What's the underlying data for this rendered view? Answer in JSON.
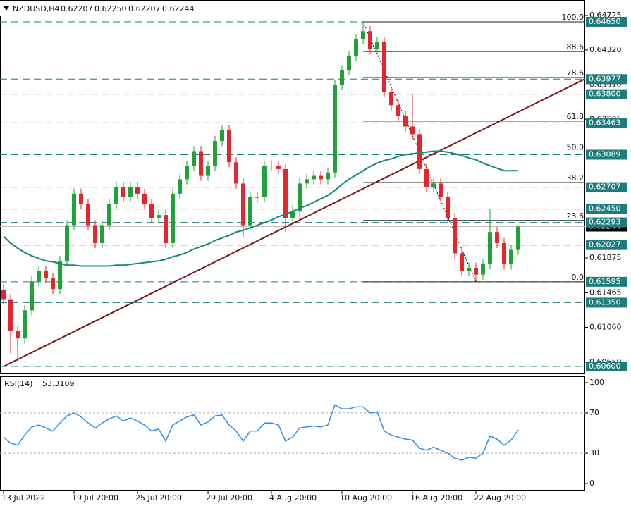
{
  "chart_data": [
    {
      "type": "candlestick",
      "symbol": "NZDUSD,H4",
      "quote": [
        0.62207,
        {
          "value": 0.6225,
          "label": "0.62250"
        },
        0.62207,
        0.62244
      ],
      "categories": [
        "13 Jul 2022",
        null,
        null,
        null,
        null,
        null,
        null,
        null,
        null,
        null,
        "19 Jul 20:00",
        null,
        null,
        null,
        null,
        null,
        null,
        null,
        null,
        "25 Jul 20:00",
        null,
        null,
        null,
        null,
        null,
        null,
        null,
        null,
        null,
        "29 Jul 20:00",
        null,
        null,
        null,
        null,
        null,
        null,
        null,
        null,
        "4 Aug 20:00",
        null,
        null,
        null,
        null,
        null,
        null,
        null,
        null,
        null,
        "10 Aug 20:00",
        null,
        null,
        null,
        null,
        null,
        null,
        null,
        null,
        null,
        "16 Aug 20:00",
        null,
        null,
        null,
        null,
        null,
        null,
        null,
        null,
        "22 Aug 20:00",
        null,
        null,
        null,
        null,
        null,
        null
      ],
      "open": [
        0.615,
        0.6139,
        0.6102,
        0.6093,
        0.6126,
        0.616,
        0.6172,
        0.6164,
        0.6151,
        0.6184,
        0.6226,
        0.6263,
        0.6251,
        0.6226,
        0.6205,
        0.6226,
        0.6251,
        0.6271,
        0.6259,
        0.6271,
        0.6263,
        0.6251,
        0.6234,
        0.6238,
        0.6205,
        0.6263,
        0.628,
        0.6296,
        0.6313,
        0.6284,
        0.6296,
        0.6325,
        0.6338,
        0.63,
        0.6275,
        0.6226,
        0.6259,
        0.6259,
        0.6296,
        0.6296,
        0.6292,
        0.6234,
        0.6242,
        0.6275,
        0.628,
        0.6284,
        0.628,
        0.6288,
        0.6391,
        0.6408,
        0.6425,
        0.6445,
        0.6454,
        0.6433,
        0.6441,
        0.6383,
        0.6367,
        0.6354,
        0.6342,
        0.6333,
        0.6292,
        0.6271,
        0.6275,
        0.6259,
        0.6234,
        0.6193,
        0.6172,
        0.6176,
        0.6168,
        0.618,
        0.6218,
        0.6205,
        0.618,
        0.6197
      ],
      "high": [
        0.6156,
        0.6145,
        0.6108,
        0.6132,
        0.6166,
        0.6178,
        0.6178,
        0.617,
        0.619,
        0.6232,
        0.6269,
        0.6269,
        0.6257,
        0.6232,
        0.6232,
        0.6257,
        0.6277,
        0.6277,
        0.6277,
        0.6277,
        0.6269,
        0.6257,
        0.6244,
        0.6244,
        0.6269,
        0.6286,
        0.6302,
        0.6319,
        0.6319,
        0.6302,
        0.6331,
        0.6344,
        0.6344,
        0.6306,
        0.6281,
        0.6265,
        0.6265,
        0.6302,
        0.6302,
        0.6302,
        0.6298,
        0.6248,
        0.6281,
        0.6286,
        0.629,
        0.629,
        0.6294,
        0.6397,
        0.6414,
        0.6431,
        0.6451,
        0.6465,
        0.646,
        0.6447,
        0.6447,
        0.6389,
        0.6373,
        0.636,
        0.638,
        0.6339,
        0.6298,
        0.6281,
        0.6281,
        0.6265,
        0.624,
        0.6199,
        0.6182,
        0.6182,
        0.6186,
        0.6245,
        0.6224,
        0.6211,
        0.6203,
        0.6226
      ],
      "low": [
        0.6133,
        0.6075,
        0.6065,
        0.6087,
        0.612,
        0.6154,
        0.6158,
        0.6145,
        0.6145,
        0.6178,
        0.622,
        0.6245,
        0.622,
        0.6199,
        0.6199,
        0.622,
        0.6245,
        0.6253,
        0.6253,
        0.6257,
        0.6245,
        0.6228,
        0.6228,
        0.6199,
        0.6199,
        0.6257,
        0.6274,
        0.629,
        0.6278,
        0.6278,
        0.629,
        0.6319,
        0.6294,
        0.6269,
        0.6212,
        0.622,
        0.6253,
        0.6253,
        0.629,
        0.6286,
        0.6218,
        0.6228,
        0.6236,
        0.6269,
        0.6274,
        0.6274,
        0.6274,
        0.6282,
        0.6385,
        0.6402,
        0.6419,
        0.6439,
        0.6427,
        0.6427,
        0.6377,
        0.6361,
        0.6348,
        0.6336,
        0.6327,
        0.6286,
        0.6265,
        0.6265,
        0.6253,
        0.6228,
        0.6187,
        0.6166,
        0.6166,
        0.616,
        0.6162,
        0.6174,
        0.6199,
        0.6174,
        0.6174,
        0.6191
      ],
      "close": [
        0.6139,
        0.6102,
        0.6093,
        0.6126,
        0.616,
        0.6172,
        0.6164,
        0.6151,
        0.6184,
        0.6226,
        0.6263,
        0.6251,
        0.6226,
        0.6205,
        0.6226,
        0.6251,
        0.6271,
        0.6259,
        0.6271,
        0.6263,
        0.6251,
        0.6234,
        0.6238,
        0.6205,
        0.6263,
        0.628,
        0.6296,
        0.6313,
        0.6284,
        0.6296,
        0.6325,
        0.6338,
        0.63,
        0.6275,
        0.6226,
        0.6259,
        0.6259,
        0.6296,
        0.6296,
        0.6292,
        0.6234,
        0.6242,
        0.6275,
        0.628,
        0.6284,
        0.628,
        0.6288,
        0.6391,
        0.6408,
        0.6425,
        0.6445,
        0.6454,
        0.6433,
        0.6441,
        0.6383,
        0.6367,
        0.6354,
        0.6342,
        0.6333,
        0.6292,
        0.6271,
        0.6275,
        0.6259,
        0.6234,
        0.6193,
        0.6172,
        0.6176,
        0.6168,
        0.618,
        0.6218,
        0.6205,
        0.618,
        0.6197,
        0.62244
      ],
      "up_color": "#22a03a",
      "down_color": "#e3262e",
      "ma": {
        "color": "#14887c",
        "values": [
          0.6213,
          0.6205,
          0.6199,
          0.6194,
          0.619,
          0.6187,
          0.6184,
          0.6183,
          0.6181,
          0.6179,
          0.6179,
          0.6178,
          0.6178,
          0.6178,
          0.6178,
          0.6178,
          0.6179,
          0.6179,
          0.618,
          0.6181,
          0.6182,
          0.6183,
          0.6184,
          0.6186,
          0.6189,
          0.6191,
          0.6194,
          0.6198,
          0.6201,
          0.6204,
          0.6208,
          0.6211,
          0.6214,
          0.6218,
          0.622,
          0.6223,
          0.6226,
          0.6229,
          0.6232,
          0.6236,
          0.6239,
          0.6242,
          0.6246,
          0.6249,
          0.6253,
          0.6257,
          0.6261,
          0.6267,
          0.6274,
          0.628,
          0.6285,
          0.629,
          0.6295,
          0.6299,
          0.6302,
          0.6304,
          0.6307,
          0.6309,
          0.631,
          0.6311,
          0.6312,
          0.6313,
          0.6313,
          0.6312,
          0.631,
          0.6308,
          0.6305,
          0.6303,
          0.6299,
          0.6296,
          0.6293,
          0.629,
          0.629,
          0.629
        ]
      },
      "trendline": {
        "x": [
          0,
          82.5
        ],
        "y": [
          0.606,
          0.6398
        ],
        "color": "#7a1616"
      },
      "level_color": "#1e7c7c",
      "levels": [
        {
          "value": 0.6465,
          "label": "0.64650"
        },
        0.63977,
        {
          "value": 0.638,
          "label": "0.63800"
        },
        0.63463,
        0.63089,
        0.62707,
        {
          "value": 0.6245,
          "label": "0.62450"
        },
        0.62293,
        0.62027,
        0.61595,
        {
          "value": 0.6135,
          "label": "0.61350"
        },
        {
          "value": 0.606,
          "label": "0.60600"
        }
      ],
      "fib": {
        "low": 0.61595,
        "high": 0.6465,
        "x": [
          51,
          67
        ],
        "levels": [
          {
            "value": 100,
            "label": "100.0"
          },
          88.6,
          78.6,
          61.8,
          {
            "value": 50,
            "label": "50.0"
          },
          38.2,
          23.6,
          {
            "value": 0,
            "label": "0.0"
          }
        ]
      },
      "ylim": [
        0.60517,
        0.64907
      ],
      "yticks": [
        0.64725,
        {
          "value": 0.6432,
          "label": "0.64320"
        },
        {
          "value": 0.6391,
          "label": "0.63910"
        },
        0.63505,
        0.61875,
        0.61465,
        {
          "value": 0.6106,
          "label": "0.61060"
        },
        {
          "value": 0.6065,
          "label": "0.60650"
        }
      ]
    },
    {
      "type": "line",
      "title": "RSI(14)",
      "color": "#2f8be6",
      "values": [
        46,
        40,
        38,
        48,
        56,
        58,
        55,
        52,
        60,
        67,
        70,
        66,
        60,
        55,
        60,
        64,
        67,
        62,
        65,
        62,
        58,
        52,
        54,
        42,
        58,
        62,
        66,
        68,
        58,
        61,
        67,
        68,
        58,
        52,
        42,
        52,
        52,
        60,
        60,
        58,
        42,
        46,
        55,
        56,
        57,
        56,
        58,
        78,
        74,
        74,
        76,
        76,
        70,
        71,
        52,
        48,
        46,
        44,
        43,
        35,
        33,
        36,
        33,
        30,
        25,
        23,
        26,
        25,
        30,
        47,
        44,
        38,
        43,
        53.3109
      ],
      "levels": [
        30,
        70
      ],
      "ylim": [
        -7.7,
        106.3
      ],
      "yticks": [
        0,
        30,
        70,
        100
      ]
    }
  ]
}
